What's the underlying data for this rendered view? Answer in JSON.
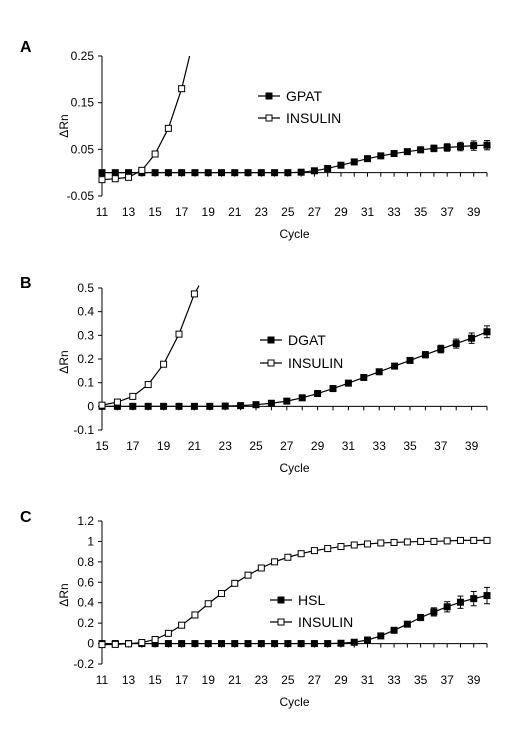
{
  "chart_data": [
    {
      "panel": "A",
      "type": "line",
      "xlabel": "Cycle",
      "ylabel": "ΔRn",
      "ylim": [
        -0.05,
        0.25
      ],
      "yticks": [
        -0.05,
        0.05,
        0.15,
        0.25
      ],
      "ytick_labels": [
        "-0.05",
        "0.05",
        "0.15",
        "0.25"
      ],
      "xlim": [
        11,
        40
      ],
      "xticks": [
        11,
        13,
        15,
        17,
        19,
        21,
        23,
        25,
        27,
        29,
        31,
        33,
        35,
        37,
        39
      ],
      "grid": false,
      "legend_position": "center",
      "series": [
        {
          "name": "GPAT",
          "marker": "filled-square",
          "x": [
            11,
            12,
            13,
            14,
            15,
            16,
            17,
            18,
            19,
            20,
            21,
            22,
            23,
            24,
            25,
            26,
            27,
            28,
            29,
            30,
            31,
            32,
            33,
            34,
            35,
            36,
            37,
            38,
            39,
            40
          ],
          "y": [
            0.0,
            0.0,
            0.0,
            0.0,
            0.0,
            0.0,
            0.0,
            0.0,
            0.0,
            0.0,
            0.0,
            0.0,
            0.0,
            0.0,
            0.0,
            0.001,
            0.004,
            0.009,
            0.016,
            0.023,
            0.03,
            0.036,
            0.041,
            0.045,
            0.049,
            0.052,
            0.054,
            0.056,
            0.058,
            0.059
          ],
          "error": [
            0,
            0,
            0,
            0,
            0,
            0,
            0,
            0,
            0,
            0,
            0,
            0,
            0,
            0,
            0,
            0,
            0,
            0,
            0,
            0,
            0.002,
            0.003,
            0.004,
            0.005,
            0.006,
            0.007,
            0.008,
            0.009,
            0.01,
            0.01
          ]
        },
        {
          "name": "INSULIN",
          "marker": "open-square",
          "x": [
            11,
            12,
            13,
            14,
            15,
            16,
            17
          ],
          "y": [
            -0.015,
            -0.013,
            -0.01,
            0.005,
            0.04,
            0.095,
            0.18
          ],
          "extends_to": [
            17.6,
            0.25
          ]
        }
      ]
    },
    {
      "panel": "B",
      "type": "line",
      "xlabel": "Cycle",
      "ylabel": "ΔRn",
      "ylim": [
        -0.1,
        0.5
      ],
      "yticks": [
        -0.1,
        0,
        0.1,
        0.2,
        0.3,
        0.4,
        0.5
      ],
      "ytick_labels": [
        "-0.1",
        "0",
        "0.1",
        "0.2",
        "0.3",
        "0.4",
        "0.5"
      ],
      "xlim": [
        15,
        40
      ],
      "xticks": [
        15,
        17,
        19,
        21,
        23,
        25,
        27,
        29,
        31,
        33,
        35,
        37,
        39
      ],
      "grid": false,
      "legend_position": "center-right",
      "series": [
        {
          "name": "DGAT",
          "marker": "filled-square",
          "x": [
            15,
            16,
            17,
            18,
            19,
            20,
            21,
            22,
            23,
            24,
            25,
            26,
            27,
            28,
            29,
            30,
            31,
            32,
            33,
            34,
            35,
            36,
            37,
            38,
            39,
            40
          ],
          "y": [
            0.0,
            0.0,
            0.0,
            0.0,
            0.0,
            0.0,
            0.0,
            0.0,
            0.001,
            0.003,
            0.007,
            0.013,
            0.022,
            0.036,
            0.054,
            0.075,
            0.098,
            0.122,
            0.146,
            0.17,
            0.194,
            0.218,
            0.242,
            0.265,
            0.288,
            0.315
          ],
          "error": [
            0,
            0,
            0,
            0,
            0,
            0,
            0,
            0,
            0,
            0,
            0,
            0,
            0,
            0,
            0,
            0.002,
            0.003,
            0.004,
            0.006,
            0.008,
            0.01,
            0.013,
            0.016,
            0.019,
            0.022,
            0.025
          ]
        },
        {
          "name": "INSULIN",
          "marker": "open-square",
          "x": [
            15,
            16,
            17,
            18,
            19,
            20,
            21
          ],
          "y": [
            0.005,
            0.018,
            0.042,
            0.092,
            0.178,
            0.305,
            0.475
          ],
          "extends_to": [
            21.3,
            0.51
          ]
        }
      ]
    },
    {
      "panel": "C",
      "type": "line",
      "xlabel": "Cycle",
      "ylabel": "ΔRn",
      "ylim": [
        -0.2,
        1.2
      ],
      "yticks": [
        -0.2,
        0,
        0.2,
        0.4,
        0.6,
        0.8,
        1,
        1.2
      ],
      "ytick_labels": [
        "-0.2",
        "0",
        "0.2",
        "0.4",
        "0.6",
        "0.8",
        "1",
        "1.2"
      ],
      "xlim": [
        11,
        40
      ],
      "xticks": [
        11,
        13,
        15,
        17,
        19,
        21,
        23,
        25,
        27,
        29,
        31,
        33,
        35,
        37,
        39
      ],
      "grid": false,
      "legend_position": "center-right",
      "series": [
        {
          "name": "HSL",
          "marker": "filled-square",
          "x": [
            11,
            12,
            13,
            14,
            15,
            16,
            17,
            18,
            19,
            20,
            21,
            22,
            23,
            24,
            25,
            26,
            27,
            28,
            29,
            30,
            31,
            32,
            33,
            34,
            35,
            36,
            37,
            38,
            39,
            40
          ],
          "y": [
            0,
            0,
            0,
            0,
            0,
            0,
            0,
            0,
            0,
            0,
            0,
            0,
            0,
            0,
            0,
            0,
            0,
            0,
            0.003,
            0.013,
            0.035,
            0.075,
            0.13,
            0.19,
            0.255,
            0.31,
            0.36,
            0.405,
            0.44,
            0.47
          ],
          "error": [
            0,
            0,
            0,
            0,
            0,
            0,
            0,
            0,
            0,
            0,
            0,
            0,
            0,
            0,
            0,
            0,
            0,
            0,
            0,
            0,
            0.005,
            0.01,
            0.015,
            0.02,
            0.03,
            0.04,
            0.05,
            0.06,
            0.07,
            0.08
          ]
        },
        {
          "name": "INSULIN",
          "marker": "open-square",
          "x": [
            11,
            12,
            13,
            14,
            15,
            16,
            17,
            18,
            19,
            20,
            21,
            22,
            23,
            24,
            25,
            26,
            27,
            28,
            29,
            30,
            31,
            32,
            33,
            34,
            35,
            36,
            37,
            38,
            39,
            40
          ],
          "y": [
            -0.01,
            -0.008,
            -0.002,
            0.01,
            0.04,
            0.1,
            0.18,
            0.28,
            0.39,
            0.49,
            0.59,
            0.67,
            0.74,
            0.8,
            0.845,
            0.88,
            0.91,
            0.93,
            0.95,
            0.965,
            0.975,
            0.985,
            0.99,
            0.995,
            1.0,
            1.0,
            1.005,
            1.01,
            1.01,
            1.01
          ]
        }
      ]
    }
  ]
}
